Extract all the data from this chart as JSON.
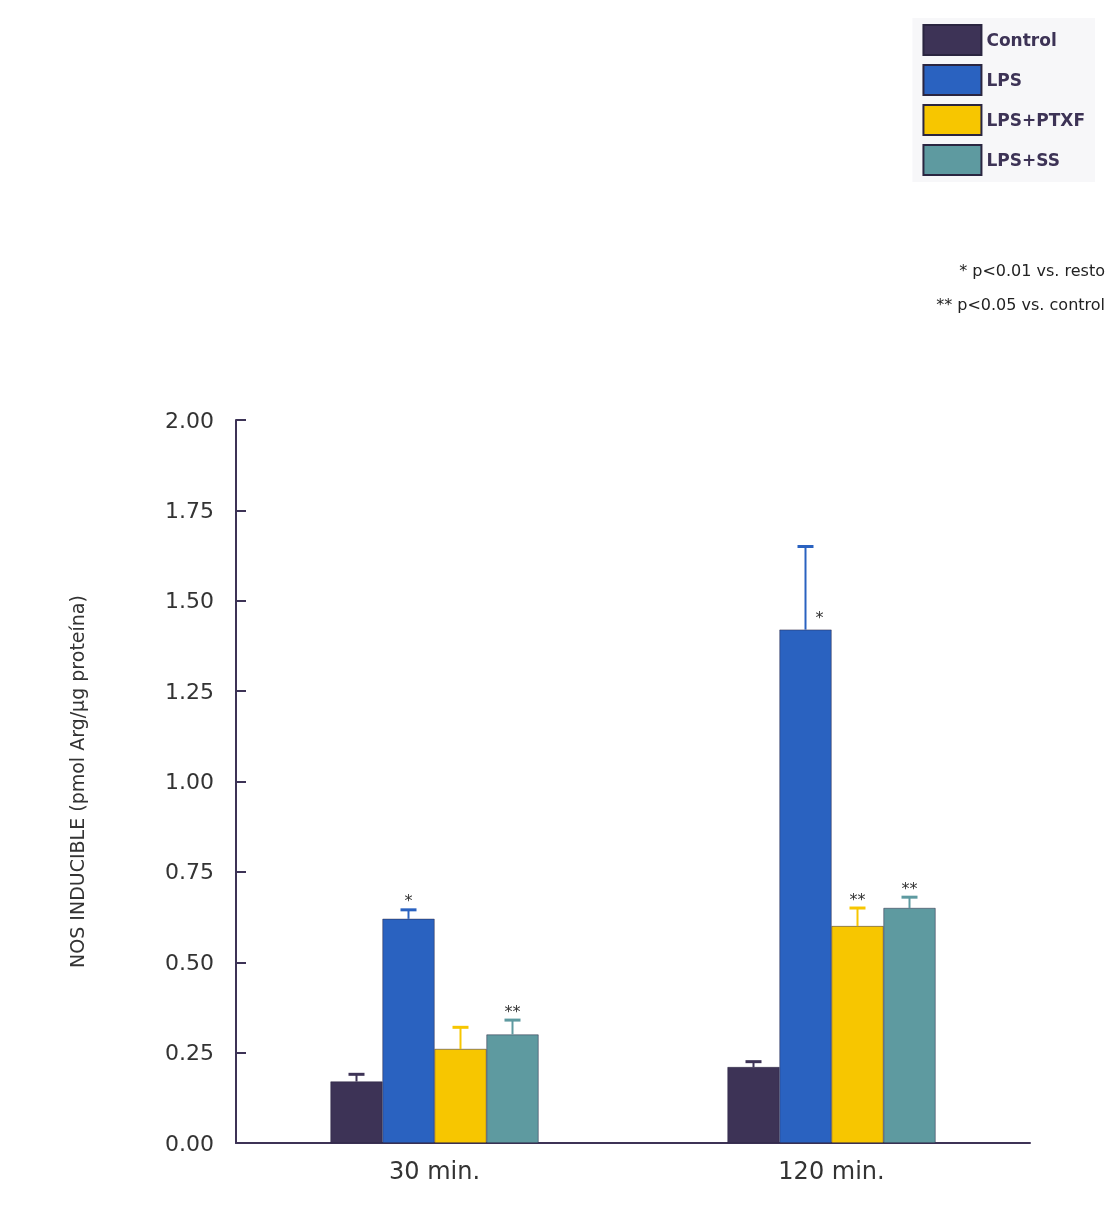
{
  "chart_data": {
    "type": "bar",
    "ylabel": "NOS INDUCIBLE (pmol Arg/μg proteína)",
    "categories": [
      "30 min.",
      "120 min."
    ],
    "series": [
      {
        "name": "Control",
        "color": "#3d3356",
        "values": [
          0.17,
          0.21
        ],
        "errors": [
          0.02,
          0.015
        ]
      },
      {
        "name": "LPS",
        "color": "#2a62c0",
        "values": [
          0.62,
          1.42
        ],
        "errors": [
          0.025,
          0.23
        ],
        "value_labels": [
          "*",
          "*"
        ]
      },
      {
        "name": "LPS+PTXF",
        "color": "#f7c600",
        "values": [
          0.26,
          0.6
        ],
        "errors": [
          0.06,
          0.05
        ],
        "value_labels": [
          null,
          "**"
        ]
      },
      {
        "name": "LPS+SS",
        "color": "#5e9aa0",
        "values": [
          0.3,
          0.65
        ],
        "errors": [
          0.04,
          0.03
        ],
        "value_labels": [
          "**",
          "**"
        ]
      }
    ],
    "ylim": [
      0,
      2
    ],
    "yticks": [
      {
        "value": 0,
        "label": "0.00"
      },
      {
        "value": 0.25,
        "label": "0.25"
      },
      {
        "value": 0.5,
        "label": "0.50"
      },
      {
        "value": 0.75,
        "label": "0.75"
      },
      {
        "value": 1,
        "label": "1.00"
      },
      {
        "value": 1.25,
        "label": "1.25"
      },
      {
        "value": 1.5,
        "label": "1.50"
      },
      {
        "value": 1.75,
        "label": "1.75"
      },
      {
        "value": 2,
        "label": "2.00"
      }
    ],
    "grid": false,
    "legend": "top right",
    "annotations": [
      "* p<0.01 vs. resto",
      "** p<0.05 vs. control"
    ]
  }
}
